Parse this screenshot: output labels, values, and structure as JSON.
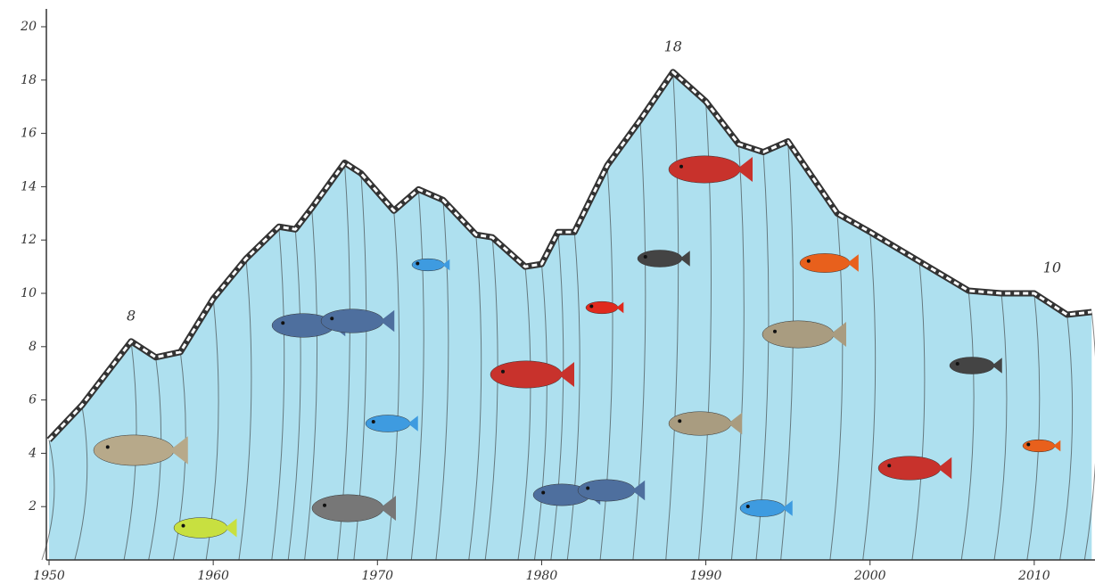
{
  "chart_data": {
    "type": "area",
    "x": [
      1950,
      1952,
      1955,
      1956.5,
      1958,
      1960,
      1962,
      1964,
      1965,
      1966,
      1968,
      1969,
      1971,
      1972.5,
      1974,
      1976,
      1977,
      1979,
      1980,
      1981,
      1982,
      1984,
      1986,
      1988,
      1990,
      1992,
      1993.5,
      1995,
      1998,
      2000,
      2003,
      2006,
      2008,
      2010,
      2012,
      2013.5
    ],
    "values": [
      4.5,
      5.8,
      8.2,
      7.6,
      7.8,
      9.8,
      11.3,
      12.5,
      12.4,
      13.2,
      14.9,
      14.5,
      13.1,
      13.9,
      13.5,
      12.2,
      12.1,
      11.0,
      11.1,
      12.3,
      12.3,
      14.8,
      16.5,
      18.3,
      17.2,
      15.6,
      15.3,
      15.7,
      13.0,
      12.3,
      11.2,
      10.1,
      10.0,
      10.0,
      9.2,
      9.3
    ],
    "color": "#aee0ef",
    "line_color": "#333333",
    "xlim": [
      1950,
      2013.7
    ],
    "xticks": [
      1950,
      1960,
      1970,
      1980,
      1990,
      2000,
      2010
    ],
    "ylim": [
      0,
      20
    ],
    "yticks": [
      2,
      4,
      6,
      8,
      10,
      12,
      14,
      16,
      18,
      20
    ],
    "annotations": [
      {
        "x": 1955,
        "text": "8"
      },
      {
        "x": 1988,
        "text": "18"
      },
      {
        "x": 2010,
        "text": "10"
      }
    ]
  }
}
